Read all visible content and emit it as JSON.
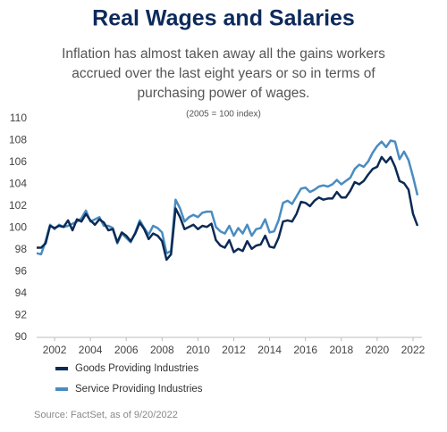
{
  "chart_data": {
    "type": "line",
    "title": "Real Wages and Salaries",
    "subtitle": [
      "Inflation has almost taken away all the gains workers",
      "accrued over the last eight years or so in terms of",
      "purchasing power of wages."
    ],
    "note": "(2005 = 100 index)",
    "source": "Source: FactSet, as of 9/20/2022",
    "x": [
      2001,
      2001.25,
      2001.5,
      2001.75,
      2002,
      2002.25,
      2002.5,
      2002.75,
      2003,
      2003.25,
      2003.5,
      2003.75,
      2004,
      2004.25,
      2004.5,
      2004.75,
      2005,
      2005.25,
      2005.5,
      2005.75,
      2006,
      2006.25,
      2006.5,
      2006.75,
      2007,
      2007.25,
      2007.5,
      2007.75,
      2008,
      2008.25,
      2008.5,
      2008.75,
      2009,
      2009.25,
      2009.5,
      2009.75,
      2010,
      2010.25,
      2010.5,
      2010.75,
      2011,
      2011.25,
      2011.5,
      2011.75,
      2012,
      2012.25,
      2012.5,
      2012.75,
      2013,
      2013.25,
      2013.5,
      2013.75,
      2014,
      2014.25,
      2014.5,
      2014.75,
      2015,
      2015.25,
      2015.5,
      2015.75,
      2016,
      2016.25,
      2016.5,
      2016.75,
      2017,
      2017.25,
      2017.5,
      2017.75,
      2018,
      2018.25,
      2018.5,
      2018.75,
      2019,
      2019.25,
      2019.5,
      2019.75,
      2020,
      2020.25,
      2020.5,
      2020.75,
      2021,
      2021.25,
      2021.5,
      2021.75,
      2022,
      2022.25
    ],
    "series": [
      {
        "name": "Goods Providing Industries",
        "color": "#0b2a55",
        "values": [
          98.2,
          98.2,
          98.6,
          100.2,
          100.0,
          100.2,
          100.1,
          100.7,
          99.8,
          100.8,
          100.6,
          101.3,
          100.7,
          100.3,
          100.8,
          100.5,
          99.8,
          99.9,
          98.7,
          99.6,
          99.3,
          98.8,
          99.5,
          100.5,
          99.9,
          99.0,
          99.5,
          99.3,
          98.8,
          97.1,
          97.6,
          101.8,
          101.0,
          99.9,
          100.1,
          100.3,
          99.9,
          100.2,
          100.1,
          100.4,
          98.9,
          98.4,
          98.2,
          98.9,
          97.8,
          98.1,
          97.9,
          98.8,
          98.1,
          98.4,
          98.5,
          99.3,
          98.3,
          98.2,
          99.1,
          100.6,
          100.7,
          100.6,
          101.3,
          102.4,
          102.3,
          102.0,
          102.5,
          102.8,
          102.6,
          102.7,
          102.7,
          103.3,
          102.8,
          102.8,
          103.4,
          104.2,
          104.0,
          104.3,
          104.9,
          105.4,
          105.6,
          106.5,
          106.0,
          106.5,
          105.6,
          104.3,
          104.1,
          103.5,
          101.3,
          100.2
        ]
      },
      {
        "name": "Service Providing Industries",
        "color": "#4a8cc0",
        "values": [
          97.7,
          97.6,
          98.8,
          100.3,
          99.9,
          100.3,
          100.1,
          100.2,
          100.4,
          100.6,
          100.9,
          101.6,
          100.6,
          100.8,
          101.0,
          100.2,
          100.2,
          100.0,
          98.6,
          99.5,
          99.1,
          98.7,
          99.6,
          100.7,
          100.0,
          99.4,
          100.2,
          100.0,
          99.6,
          97.7,
          97.9,
          102.6,
          101.8,
          100.6,
          101.0,
          101.2,
          101.0,
          101.4,
          101.5,
          101.5,
          100.1,
          99.7,
          99.5,
          100.2,
          99.3,
          100.0,
          99.5,
          100.3,
          99.3,
          99.9,
          100.0,
          100.8,
          99.6,
          99.7,
          100.7,
          102.3,
          102.5,
          102.2,
          102.9,
          103.6,
          103.7,
          103.3,
          103.5,
          103.8,
          103.9,
          103.8,
          104.0,
          104.4,
          104.0,
          104.3,
          104.6,
          105.4,
          105.8,
          105.6,
          106.1,
          106.9,
          107.5,
          107.9,
          107.4,
          108.0,
          107.9,
          106.3,
          107.0,
          106.2,
          104.7,
          103.0
        ]
      }
    ],
    "xlim": [
      2001,
      2022.5
    ],
    "xticks": [
      2002,
      2004,
      2006,
      2008,
      2010,
      2012,
      2014,
      2016,
      2018,
      2020,
      2022
    ],
    "ylim": [
      90,
      110
    ],
    "yticks": [
      90,
      92,
      94,
      96,
      98,
      100,
      102,
      104,
      106,
      108,
      110
    ],
    "grid": false
  }
}
